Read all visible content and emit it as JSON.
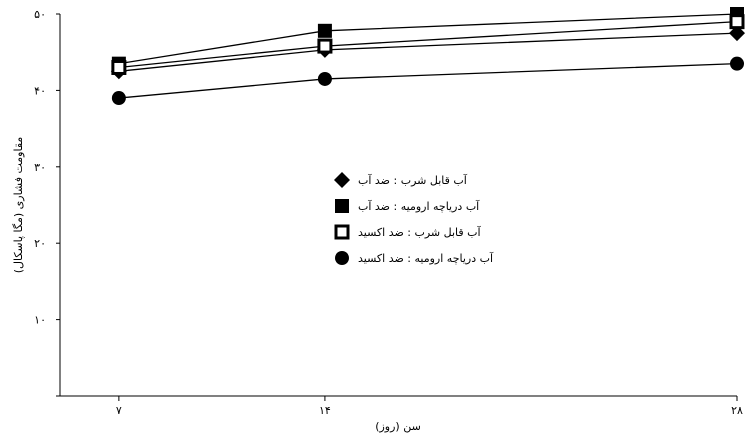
{
  "chart_data": {
    "type": "line",
    "title": "",
    "xlabel": "سن (روز)",
    "ylabel": "مقاومت فشاری (مگا پاسکال)",
    "x": [
      7,
      14,
      28
    ],
    "x_tick_labels": [
      "۷",
      "۱۴",
      "۲۸"
    ],
    "y_ticks": [
      0,
      10,
      20,
      30,
      40,
      50
    ],
    "y_tick_labels": [
      "",
      "۱۰",
      "۲۰",
      "۳۰",
      "۴۰",
      "۵۰"
    ],
    "xlim": [
      5,
      28
    ],
    "ylim": [
      0,
      50
    ],
    "grid": false,
    "legend_position": "center",
    "series": [
      {
        "name": "آب قابل شرب : ضد آب",
        "marker": "diamond",
        "values": [
          42.5,
          45.3,
          47.5
        ]
      },
      {
        "name": "آب دریاچه ارومیه : ضد آب",
        "marker": "square",
        "values": [
          43.5,
          47.8,
          50.0
        ]
      },
      {
        "name": "آب قابل شرب : ضد اکسید",
        "marker": "open-square",
        "values": [
          43.0,
          45.8,
          49.0
        ]
      },
      {
        "name": "آب دریاچه ارومیه : ضد اکسید",
        "marker": "circle",
        "values": [
          39.0,
          41.5,
          43.5
        ]
      }
    ]
  }
}
